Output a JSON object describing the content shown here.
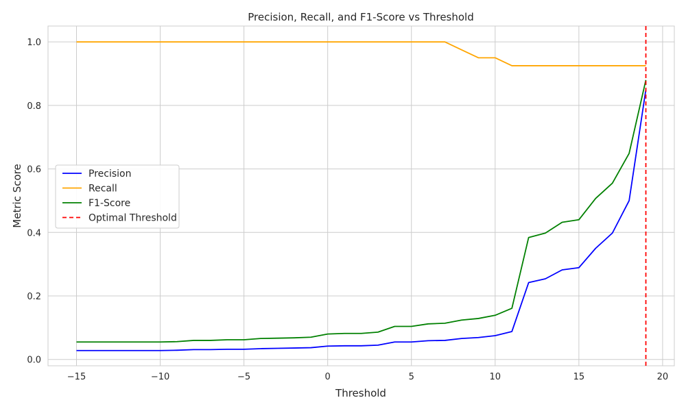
{
  "chart_data": {
    "type": "line",
    "title": "Precision, Recall, and F1-Score vs Threshold",
    "xlabel": "Threshold",
    "ylabel": "Metric Score",
    "xlim": [
      -16.7,
      20.7
    ],
    "ylim": [
      -0.02,
      1.05
    ],
    "xticks": [
      -15,
      -10,
      -5,
      0,
      5,
      10,
      15,
      20
    ],
    "yticks": [
      0.0,
      0.2,
      0.4,
      0.6,
      0.8,
      1.0
    ],
    "xtick_labels": [
      "−15",
      "−10",
      "−5",
      "0",
      "5",
      "10",
      "15",
      "20"
    ],
    "ytick_labels": [
      "0.0",
      "0.2",
      "0.4",
      "0.6",
      "0.8",
      "1.0"
    ],
    "grid": true,
    "legend_position": "center-left",
    "x": [
      -15,
      -14,
      -13,
      -12,
      -11,
      -10,
      -9,
      -8,
      -7,
      -6,
      -5,
      -4,
      -3,
      -2,
      -1,
      0,
      1,
      2,
      3,
      4,
      5,
      6,
      7,
      8,
      9,
      10,
      11,
      12,
      13,
      14,
      15,
      16,
      17,
      18,
      19
    ],
    "series": [
      {
        "name": "Precision",
        "color": "#0000ff",
        "dash": false,
        "values": [
          0.028,
          0.028,
          0.028,
          0.028,
          0.028,
          0.028,
          0.029,
          0.031,
          0.031,
          0.032,
          0.032,
          0.034,
          0.035,
          0.036,
          0.037,
          0.042,
          0.043,
          0.043,
          0.045,
          0.055,
          0.055,
          0.059,
          0.06,
          0.066,
          0.069,
          0.075,
          0.088,
          0.242,
          0.254,
          0.282,
          0.289,
          0.35,
          0.398,
          0.5,
          0.85
        ]
      },
      {
        "name": "Recall",
        "color": "#ffa500",
        "dash": false,
        "values": [
          1.0,
          1.0,
          1.0,
          1.0,
          1.0,
          1.0,
          1.0,
          1.0,
          1.0,
          1.0,
          1.0,
          1.0,
          1.0,
          1.0,
          1.0,
          1.0,
          1.0,
          1.0,
          1.0,
          1.0,
          1.0,
          1.0,
          1.0,
          0.975,
          0.95,
          0.95,
          0.925,
          0.925,
          0.925,
          0.925,
          0.925,
          0.925,
          0.925,
          0.925,
          0.925
        ]
      },
      {
        "name": "F1-Score",
        "color": "#008000",
        "dash": false,
        "values": [
          0.055,
          0.055,
          0.055,
          0.055,
          0.055,
          0.055,
          0.056,
          0.06,
          0.06,
          0.062,
          0.062,
          0.066,
          0.067,
          0.068,
          0.07,
          0.08,
          0.082,
          0.082,
          0.086,
          0.104,
          0.104,
          0.112,
          0.114,
          0.124,
          0.129,
          0.139,
          0.161,
          0.384,
          0.398,
          0.432,
          0.44,
          0.507,
          0.555,
          0.649,
          0.88
        ]
      }
    ],
    "vline": {
      "name": "Optimal Threshold",
      "x": 19,
      "color": "#ff0000",
      "dash": true
    }
  }
}
